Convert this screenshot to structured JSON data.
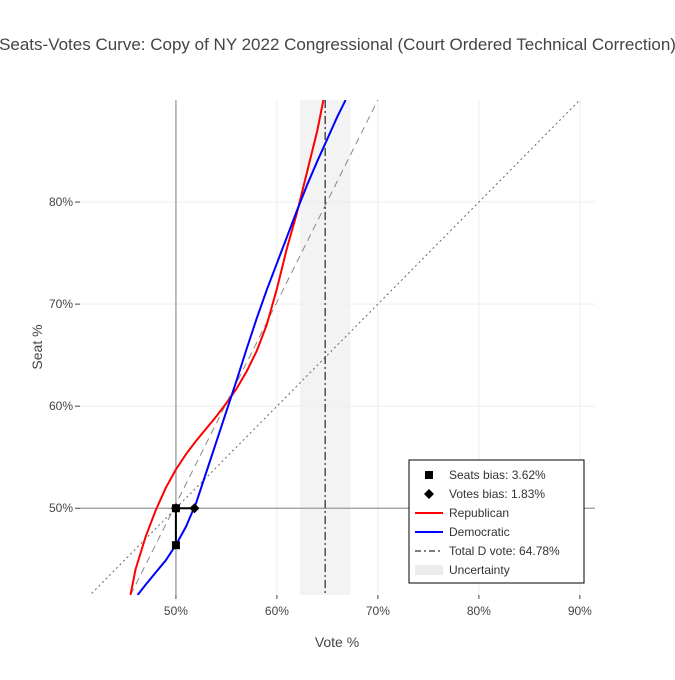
{
  "chart_data": {
    "type": "line",
    "title": "Seats-Votes Curve: Copy of NY 2022 Congressional (Court Ordered Technical Correction)",
    "xlabel": "Vote %",
    "ylabel": "Seat %",
    "xlim": [
      40.5,
      91.5
    ],
    "ylim": [
      41.5,
      90
    ],
    "x_ticks": [
      {
        "value": 50,
        "label": "50%"
      },
      {
        "value": 60,
        "label": "60%"
      },
      {
        "value": 70,
        "label": "70%"
      },
      {
        "value": 80,
        "label": "80%"
      },
      {
        "value": 90,
        "label": "90%"
      }
    ],
    "y_ticks": [
      {
        "value": 50,
        "label": "50%"
      },
      {
        "value": 60,
        "label": "60%"
      },
      {
        "value": 70,
        "label": "70%"
      },
      {
        "value": 80,
        "label": "80%"
      }
    ],
    "grid": true,
    "legend_placement": "bottom-right",
    "series": [
      {
        "name": "Republican",
        "color": "#ff0000",
        "points": [
          [
            45.5,
            41.5
          ],
          [
            46,
            44
          ],
          [
            47,
            47.2
          ],
          [
            48,
            49.8
          ],
          [
            49,
            52
          ],
          [
            50,
            53.8
          ],
          [
            51,
            55.3
          ],
          [
            52,
            56.6
          ],
          [
            53,
            57.8
          ],
          [
            54,
            59
          ],
          [
            55,
            60.3
          ],
          [
            56,
            61.7
          ],
          [
            57,
            63.4
          ],
          [
            58,
            65.4
          ],
          [
            59,
            68
          ],
          [
            60,
            71.5
          ],
          [
            61,
            75.5
          ],
          [
            62,
            79
          ],
          [
            63,
            83
          ],
          [
            64,
            87
          ],
          [
            64.6,
            90
          ]
        ]
      },
      {
        "name": "Democratic",
        "color": "#0000ff",
        "points": [
          [
            46.2,
            41.5
          ],
          [
            47,
            42.5
          ],
          [
            48,
            43.7
          ],
          [
            49,
            44.9
          ],
          [
            50,
            46.4
          ],
          [
            51,
            48.2
          ],
          [
            52,
            50.5
          ],
          [
            53,
            53.5
          ],
          [
            54,
            56.5
          ],
          [
            55,
            59.5
          ],
          [
            56,
            62.5
          ],
          [
            57,
            65.6
          ],
          [
            58,
            68.6
          ],
          [
            59,
            71.4
          ],
          [
            60,
            74
          ],
          [
            61,
            76.6
          ],
          [
            62,
            79.2
          ],
          [
            63,
            81.7
          ],
          [
            64,
            84
          ],
          [
            65,
            86.2
          ],
          [
            66,
            88.4
          ],
          [
            66.8,
            90
          ]
        ]
      }
    ],
    "reference_lines": [
      {
        "name": "diagonal",
        "style": "dotted",
        "color": "#666666",
        "points": [
          [
            41.3,
            41.3
          ],
          [
            90.5,
            90.5
          ]
        ]
      },
      {
        "name": "symmetry",
        "style": "dashed",
        "color": "#888888",
        "points": [
          [
            45.5,
            41.5
          ],
          [
            70,
            90
          ]
        ]
      }
    ],
    "bias_markers": {
      "seats_bias": {
        "label": "Seats bias: 3.62%",
        "points": [
          [
            50,
            50
          ],
          [
            50,
            46.38
          ]
        ]
      },
      "votes_bias": {
        "label": "Votes bias: 1.83%",
        "points": [
          [
            50,
            50
          ],
          [
            51.83,
            50
          ]
        ]
      }
    },
    "total_d_vote": {
      "label": "Total D vote: 64.78%",
      "value": 64.78
    },
    "uncertainty": {
      "label": "Uncertainty",
      "range": [
        62.3,
        67.3
      ]
    },
    "legend": [
      "Seats bias: 3.62%",
      "Votes bias: 1.83%",
      "Republican",
      "Democratic",
      "Total D vote: 64.78%",
      "Uncertainty"
    ]
  }
}
